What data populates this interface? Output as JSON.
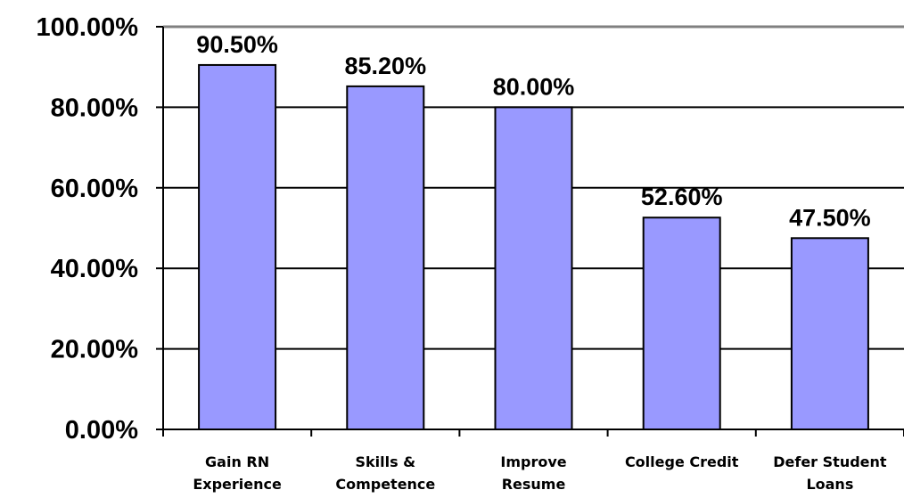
{
  "chart_data": {
    "type": "bar",
    "categories": [
      [
        "Gain RN",
        "Experience"
      ],
      [
        "Skills &",
        "Competence"
      ],
      [
        "Improve",
        "Resume"
      ],
      [
        "College Credit"
      ],
      [
        "Defer Student",
        "Loans"
      ]
    ],
    "values": [
      90.5,
      85.2,
      80.0,
      52.6,
      47.5
    ],
    "data_labels": [
      "90.50%",
      "85.20%",
      "80.00%",
      "52.60%",
      "47.50%"
    ],
    "ylim": [
      0,
      100
    ],
    "yticks": [
      0,
      20,
      40,
      60,
      80,
      100
    ],
    "ytick_labels": [
      "0.00%",
      "20.00%",
      "40.00%",
      "60.00%",
      "80.00%",
      "100.00%"
    ],
    "grid": true,
    "title": "",
    "xlabel": "",
    "ylabel": "",
    "colors": {
      "bar": "#9999ff",
      "bar_stroke": "#000000",
      "grid": "#000000",
      "top_border": "#808080"
    }
  }
}
